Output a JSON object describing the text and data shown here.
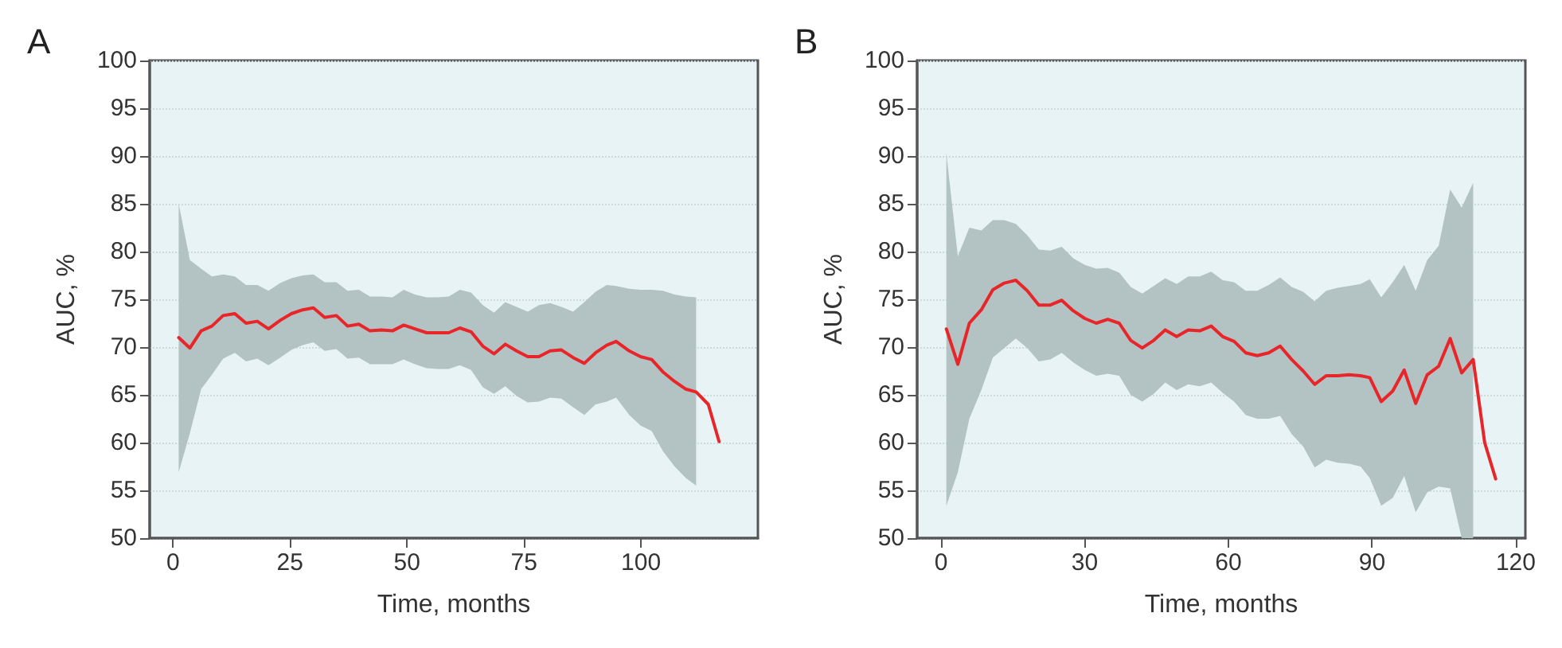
{
  "chart_data": [
    {
      "type": "line",
      "title": "A",
      "xlabel": "Time, months",
      "ylabel": "AUC, %",
      "xlim": [
        -5,
        125
      ],
      "xticks": [
        0,
        25,
        50,
        75,
        100
      ],
      "ylim": [
        50,
        100
      ],
      "yticks": [
        50,
        55,
        60,
        65,
        70,
        75,
        80,
        85,
        90,
        95,
        100
      ],
      "grid": "y",
      "marker": "none",
      "line_style": "solid",
      "series": [
        {
          "color": "#e8262a",
          "x": [
            1.2,
            3.6,
            6.0,
            8.3,
            10.7,
            13.2,
            15.6,
            18.0,
            20.4,
            22.9,
            25.3,
            27.7,
            30.0,
            32.4,
            34.9,
            37.3,
            39.7,
            42.1,
            44.5,
            46.9,
            49.3,
            51.7,
            54.2,
            56.6,
            58.9,
            61.3,
            63.7,
            66.2,
            68.6,
            71.0,
            73.4,
            75.8,
            78.2,
            80.6,
            83.0,
            85.5,
            87.9,
            90.3,
            92.7,
            94.7,
            97.5,
            99.9,
            102.3,
            104.7,
            107.2,
            109.6,
            111.8,
            114.4,
            116.7
          ],
          "values": [
            71.0,
            69.9,
            71.7,
            72.2,
            73.3,
            73.5,
            72.5,
            72.7,
            71.9,
            72.8,
            73.5,
            73.9,
            74.1,
            73.1,
            73.3,
            72.2,
            72.4,
            71.7,
            71.8,
            71.7,
            72.3,
            71.9,
            71.5,
            71.5,
            71.5,
            72.0,
            71.6,
            70.1,
            69.3,
            70.3,
            69.6,
            69.0,
            69.0,
            69.6,
            69.7,
            68.9,
            68.3,
            69.4,
            70.2,
            70.6,
            69.6,
            69.0,
            68.7,
            67.4,
            66.4,
            65.6,
            65.3,
            64.0,
            60.1
          ],
          "upper": [
            85.0,
            79.1,
            78.2,
            77.4,
            77.6,
            77.4,
            76.5,
            76.5,
            75.9,
            76.7,
            77.2,
            77.5,
            77.6,
            76.8,
            76.8,
            75.9,
            76.0,
            75.3,
            75.3,
            75.2,
            76.0,
            75.5,
            75.2,
            75.2,
            75.3,
            76.0,
            75.7,
            74.4,
            73.6,
            74.7,
            74.2,
            73.7,
            74.4,
            74.6,
            74.2,
            73.7,
            74.7,
            75.8,
            76.5,
            76.4,
            76.1,
            76.0,
            76.0,
            75.9,
            75.5,
            75.3,
            75.2,
            null,
            null
          ],
          "lower": [
            56.9,
            61.0,
            65.6,
            67.1,
            68.8,
            69.4,
            68.5,
            68.8,
            68.1,
            68.9,
            69.7,
            70.2,
            70.5,
            69.6,
            69.8,
            68.8,
            68.9,
            68.2,
            68.2,
            68.2,
            68.7,
            68.2,
            67.8,
            67.7,
            67.7,
            68.1,
            67.6,
            65.8,
            65.1,
            65.9,
            64.9,
            64.2,
            64.3,
            64.7,
            64.6,
            63.7,
            62.9,
            64.0,
            64.3,
            64.7,
            62.9,
            61.8,
            61.2,
            59.1,
            57.5,
            56.3,
            55.5,
            null,
            null
          ]
        }
      ]
    },
    {
      "type": "line",
      "title": "B",
      "xlabel": "Time, months",
      "ylabel": "AUC, %",
      "xlim": [
        -5,
        122
      ],
      "xticks": [
        0,
        30,
        60,
        90,
        120
      ],
      "ylim": [
        50,
        100
      ],
      "yticks": [
        50,
        55,
        60,
        65,
        70,
        75,
        80,
        85,
        90,
        95,
        100
      ],
      "grid": "y",
      "marker": "none",
      "line_style": "solid",
      "series": [
        {
          "color": "#e8262a",
          "x": [
            1.1,
            3.5,
            5.9,
            8.4,
            10.8,
            13.2,
            15.6,
            18.0,
            20.4,
            22.8,
            25.2,
            27.6,
            30.0,
            32.4,
            34.8,
            37.2,
            39.6,
            42.0,
            44.4,
            46.8,
            49.2,
            51.6,
            54.0,
            56.4,
            58.8,
            61.2,
            63.6,
            66.0,
            68.4,
            70.8,
            73.2,
            75.6,
            78.0,
            80.4,
            82.8,
            85.2,
            87.6,
            89.5,
            91.9,
            94.3,
            96.7,
            99.1,
            101.5,
            103.9,
            106.3,
            108.7,
            111.1,
            113.5,
            115.8
          ],
          "values": [
            71.9,
            68.2,
            72.5,
            73.9,
            76.0,
            76.7,
            77.0,
            75.9,
            74.4,
            74.4,
            74.9,
            73.8,
            73.0,
            72.5,
            72.9,
            72.5,
            70.7,
            69.9,
            70.7,
            71.8,
            71.1,
            71.8,
            71.7,
            72.2,
            71.1,
            70.6,
            69.4,
            69.1,
            69.4,
            70.1,
            68.7,
            67.5,
            66.1,
            67.0,
            67.0,
            67.1,
            67.0,
            66.8,
            64.3,
            65.4,
            67.6,
            64.1,
            67.1,
            68.0,
            70.9,
            67.3,
            68.7,
            60.0,
            56.2
          ],
          "upper": [
            90.3,
            79.5,
            82.5,
            82.2,
            83.3,
            83.3,
            82.9,
            81.7,
            80.2,
            80.1,
            80.5,
            79.3,
            78.6,
            78.2,
            78.3,
            77.8,
            76.3,
            75.6,
            76.4,
            77.2,
            76.6,
            77.4,
            77.4,
            77.9,
            77.0,
            76.8,
            75.9,
            75.9,
            76.5,
            77.3,
            76.3,
            75.8,
            74.8,
            75.9,
            76.2,
            76.4,
            76.6,
            77.1,
            75.2,
            76.8,
            78.6,
            75.9,
            79.1,
            80.6,
            86.5,
            84.6,
            87.2,
            null,
            null
          ],
          "lower": [
            53.4,
            56.9,
            62.5,
            65.5,
            68.9,
            69.9,
            70.9,
            69.9,
            68.5,
            68.7,
            69.4,
            68.4,
            67.6,
            67.0,
            67.2,
            67.0,
            65.0,
            64.3,
            65.1,
            66.3,
            65.5,
            66.1,
            65.9,
            66.3,
            65.2,
            64.3,
            62.9,
            62.5,
            62.5,
            62.8,
            60.9,
            59.6,
            57.4,
            58.2,
            57.9,
            57.8,
            57.5,
            56.3,
            53.4,
            54.2,
            56.5,
            52.7,
            54.8,
            55.4,
            55.2,
            50.0,
            50.0,
            null,
            null
          ]
        }
      ]
    }
  ]
}
